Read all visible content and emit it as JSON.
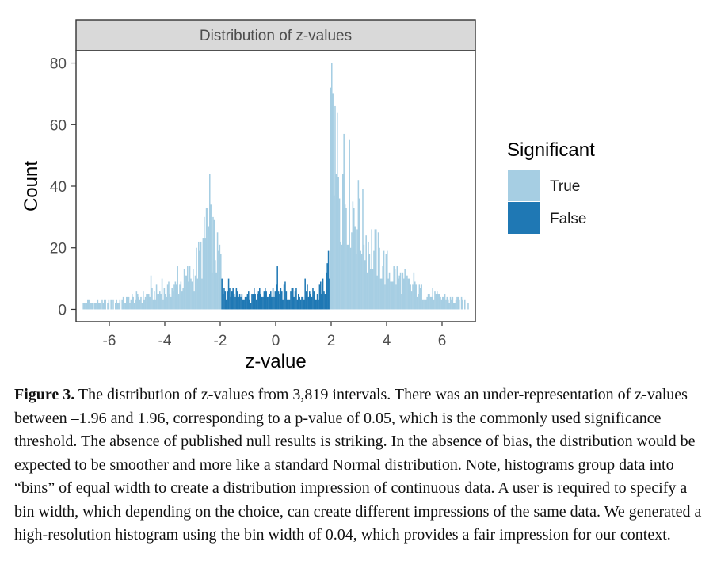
{
  "chart_data": {
    "type": "bar",
    "title": "Distribution of z-values",
    "xlabel": "z-value",
    "ylabel": "Count",
    "xlim": [
      -7.2,
      7.2
    ],
    "ylim": [
      -4,
      84
    ],
    "x_ticks": [
      "-6",
      "-4",
      "-2",
      "0",
      "2",
      "4",
      "6"
    ],
    "y_ticks": [
      "0",
      "20",
      "40",
      "60",
      "80"
    ],
    "bin_width": 0.04,
    "legend": {
      "title": "Significant",
      "position": "right",
      "entries": [
        {
          "label": "True",
          "color": "#a6cee3"
        },
        {
          "label": "False",
          "color": "#1f78b4"
        }
      ]
    },
    "series": [
      {
        "name": "True",
        "color": "#a6cee3",
        "profile": [
          {
            "x": -6.98,
            "y": 2
          },
          {
            "x": -6.5,
            "y": 2
          },
          {
            "x": -6.0,
            "y": 2
          },
          {
            "x": -5.5,
            "y": 3
          },
          {
            "x": -5.0,
            "y": 4
          },
          {
            "x": -4.5,
            "y": 5
          },
          {
            "x": -4.0,
            "y": 6
          },
          {
            "x": -3.5,
            "y": 8
          },
          {
            "x": -3.0,
            "y": 12
          },
          {
            "x": -2.7,
            "y": 18
          },
          {
            "x": -2.5,
            "y": 24
          },
          {
            "x": -2.4,
            "y": 26
          },
          {
            "x": -2.3,
            "y": 24
          },
          {
            "x": -2.2,
            "y": 21
          },
          {
            "x": -2.1,
            "y": 19
          },
          {
            "x": -1.98,
            "y": 17
          },
          {
            "x": 1.98,
            "y": 60
          },
          {
            "x": 2.1,
            "y": 58
          },
          {
            "x": 2.2,
            "y": 52
          },
          {
            "x": 2.4,
            "y": 45
          },
          {
            "x": 2.7,
            "y": 38
          },
          {
            "x": 3.0,
            "y": 30
          },
          {
            "x": 3.5,
            "y": 20
          },
          {
            "x": 4.0,
            "y": 14
          },
          {
            "x": 4.5,
            "y": 10
          },
          {
            "x": 5.0,
            "y": 7
          },
          {
            "x": 5.5,
            "y": 5
          },
          {
            "x": 6.0,
            "y": 4
          },
          {
            "x": 6.5,
            "y": 3
          },
          {
            "x": 6.98,
            "y": 2
          }
        ],
        "peaks": [
          {
            "x": -2.38,
            "y": 44
          },
          {
            "x": -2.46,
            "y": 33
          },
          {
            "x": -2.5,
            "y": 33
          },
          {
            "x": -2.26,
            "y": 30
          },
          {
            "x": -2.1,
            "y": 25
          },
          {
            "x": -3.54,
            "y": 14
          },
          {
            "x": -4.5,
            "y": 11
          },
          {
            "x": -4.1,
            "y": 10
          },
          {
            "x": 2.02,
            "y": 80
          },
          {
            "x": 2.06,
            "y": 70
          },
          {
            "x": 2.14,
            "y": 66
          },
          {
            "x": 2.22,
            "y": 64
          },
          {
            "x": 2.46,
            "y": 57
          },
          {
            "x": 3.02,
            "y": 36
          },
          {
            "x": 4.98,
            "y": 12
          }
        ]
      },
      {
        "name": "False",
        "color": "#1f78b4",
        "profile": [
          {
            "x": -1.94,
            "y": 8
          },
          {
            "x": -1.5,
            "y": 6
          },
          {
            "x": -1.0,
            "y": 5
          },
          {
            "x": -0.5,
            "y": 5
          },
          {
            "x": 0.0,
            "y": 6
          },
          {
            "x": 0.5,
            "y": 5
          },
          {
            "x": 1.0,
            "y": 5
          },
          {
            "x": 1.5,
            "y": 6
          },
          {
            "x": 1.94,
            "y": 9
          }
        ],
        "peaks": [
          {
            "x": -1.94,
            "y": 10
          },
          {
            "x": 0.06,
            "y": 14
          },
          {
            "x": 0.34,
            "y": 9
          },
          {
            "x": 1.06,
            "y": 10
          },
          {
            "x": 1.9,
            "y": 19
          },
          {
            "x": 1.86,
            "y": 15
          }
        ]
      }
    ]
  },
  "caption": {
    "label": "Figure 3.",
    "text": " The distribution of z-values from 3,819 intervals. There was an under-representation of z-values between –1.96 and 1.96, corresponding to a p-value of 0.05, which is the commonly used significance threshold. The absence of published null results is striking. In the absence of bias, the distribution would be expected to be smoother and more like a standard Normal distribution. Note, histograms group data into “bins” of equal width to create a distribution impression of continuous data. A user is required to specify a bin width, which depending on the choice, can create different impressions of the same data. We generated a high-resolution histogram using the bin width of 0.04, which provides a fair impression for our context."
  }
}
